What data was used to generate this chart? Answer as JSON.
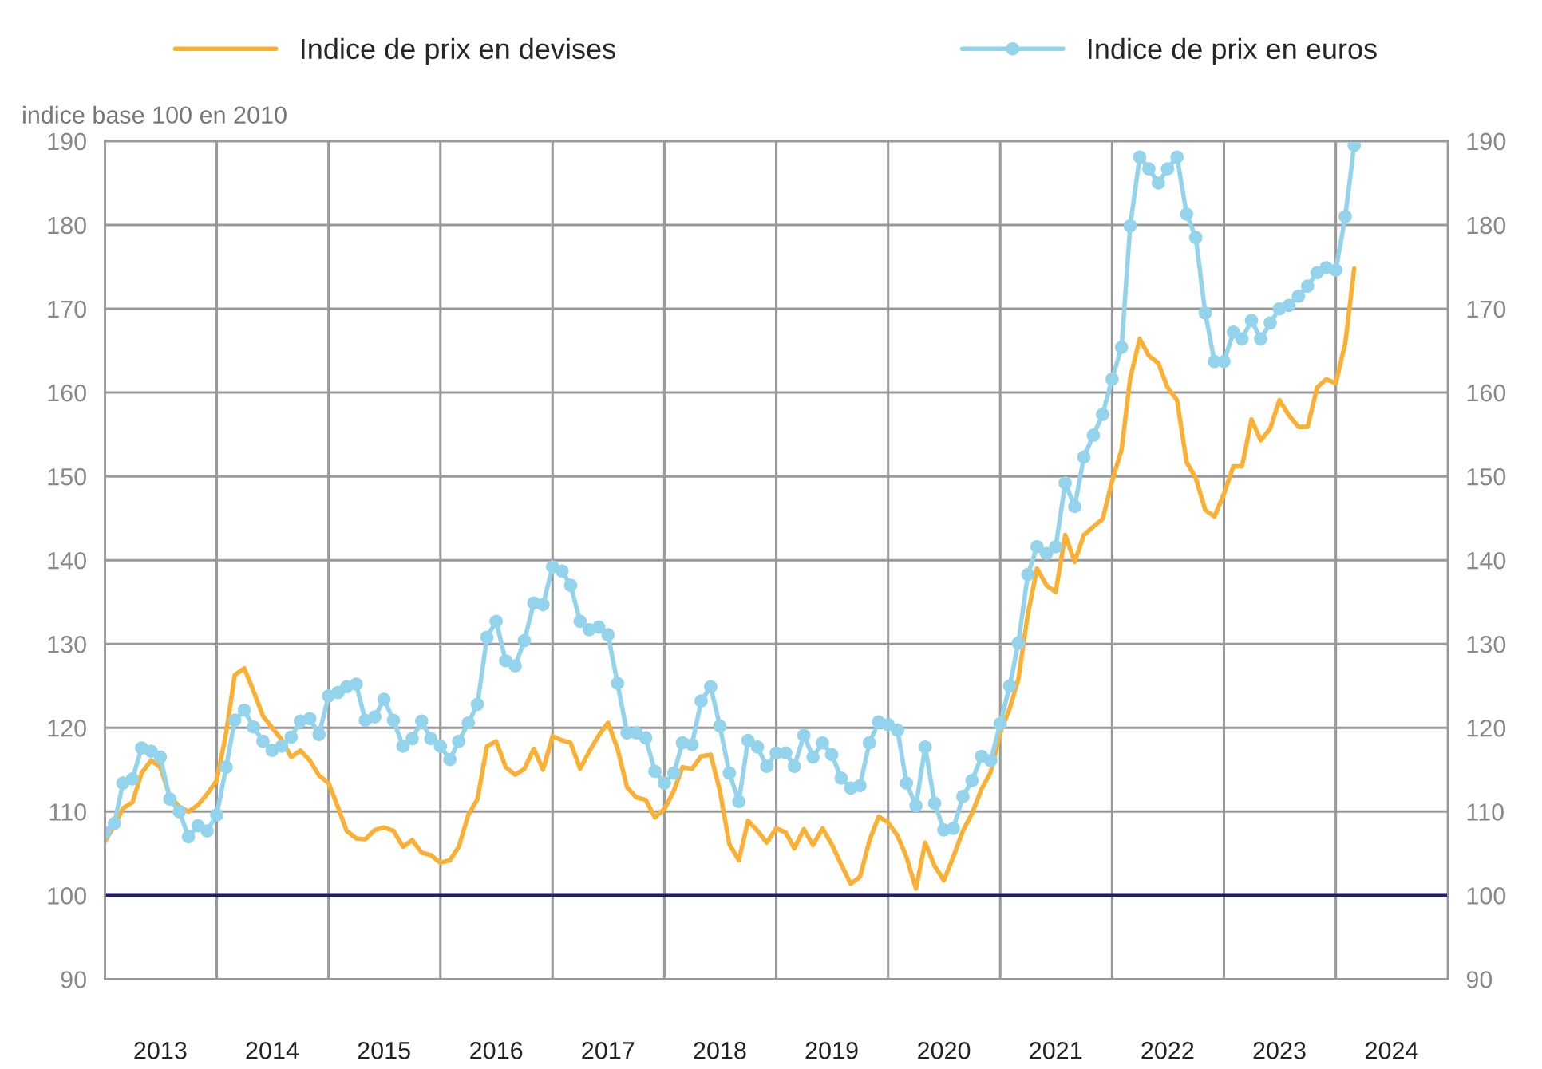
{
  "chart_data": {
    "type": "line",
    "ylabel": "indice base 100 en 2010",
    "x": [
      "2013-01",
      "2013-02",
      "2013-03",
      "2013-04",
      "2013-05",
      "2013-06",
      "2013-07",
      "2013-08",
      "2013-09",
      "2013-10",
      "2013-11",
      "2013-12",
      "2014-01",
      "2014-02",
      "2014-03",
      "2014-04",
      "2014-05",
      "2014-06",
      "2014-07",
      "2014-08",
      "2014-09",
      "2014-10",
      "2014-11",
      "2014-12",
      "2015-01",
      "2015-02",
      "2015-03",
      "2015-04",
      "2015-05",
      "2015-06",
      "2015-07",
      "2015-08",
      "2015-09",
      "2015-10",
      "2015-11",
      "2015-12",
      "2016-01",
      "2016-02",
      "2016-03",
      "2016-04",
      "2016-05",
      "2016-06",
      "2016-07",
      "2016-08",
      "2016-09",
      "2016-10",
      "2016-11",
      "2016-12",
      "2017-01",
      "2017-02",
      "2017-03",
      "2017-04",
      "2017-05",
      "2017-06",
      "2017-07",
      "2017-08",
      "2017-09",
      "2017-10",
      "2017-11",
      "2017-12",
      "2018-01",
      "2018-02",
      "2018-03",
      "2018-04",
      "2018-05",
      "2018-06",
      "2018-07",
      "2018-08",
      "2018-09",
      "2018-10",
      "2018-11",
      "2018-12",
      "2019-01",
      "2019-02",
      "2019-03",
      "2019-04",
      "2019-05",
      "2019-06",
      "2019-07",
      "2019-08",
      "2019-09",
      "2019-10",
      "2019-11",
      "2019-12",
      "2020-01",
      "2020-02",
      "2020-03",
      "2020-04",
      "2020-05",
      "2020-06",
      "2020-07",
      "2020-08",
      "2020-09",
      "2020-10",
      "2020-11",
      "2020-12",
      "2021-01",
      "2021-02",
      "2021-03",
      "2021-04",
      "2021-05",
      "2021-06",
      "2021-07",
      "2021-08",
      "2021-09",
      "2021-10",
      "2021-11",
      "2021-12",
      "2022-01",
      "2022-02",
      "2022-03",
      "2022-04",
      "2022-05",
      "2022-06",
      "2022-07",
      "2022-08",
      "2022-09",
      "2022-10",
      "2022-11",
      "2022-12",
      "2023-01",
      "2023-02",
      "2023-03",
      "2023-04",
      "2023-05",
      "2023-06",
      "2023-07",
      "2023-08",
      "2023-09",
      "2023-10",
      "2023-11",
      "2023-12",
      "2024-01",
      "2024-02",
      "2024-03"
    ],
    "series": [
      {
        "name": "Indice de prix en devises",
        "color": "#fbb034",
        "marker": "none",
        "values": [
          106.4,
          108.3,
          110.4,
          111.1,
          114.6,
          116.1,
          115.3,
          111.8,
          110.6,
          110.0,
          110.8,
          112.1,
          113.7,
          119.4,
          126.3,
          127.1,
          124.4,
          121.4,
          120.0,
          118.6,
          116.5,
          117.3,
          116.1,
          114.3,
          113.4,
          110.5,
          107.7,
          106.8,
          106.7,
          107.8,
          108.1,
          107.7,
          105.8,
          106.6,
          105.1,
          104.8,
          103.9,
          104.2,
          105.8,
          109.6,
          111.5,
          117.8,
          118.4,
          115.3,
          114.4,
          115.1,
          117.5,
          115.0,
          119.0,
          118.5,
          118.2,
          115.1,
          117.2,
          119.1,
          120.6,
          117.5,
          112.9,
          111.7,
          111.4,
          109.3,
          110.3,
          112.5,
          115.3,
          115.1,
          116.6,
          116.8,
          112.5,
          106.1,
          104.2,
          108.9,
          107.7,
          106.3,
          108.0,
          107.5,
          105.6,
          107.9,
          106.0,
          108.0,
          106.1,
          103.7,
          101.4,
          102.2,
          106.5,
          109.4,
          108.7,
          107.1,
          104.6,
          100.8,
          106.3,
          103.5,
          101.8,
          104.6,
          107.7,
          109.8,
          112.7,
          114.7,
          119.4,
          122.3,
          125.8,
          133.5,
          139.0,
          137.0,
          136.2,
          143.0,
          139.8,
          143.0,
          144.0,
          144.9,
          149.4,
          153.2,
          161.7,
          166.4,
          164.4,
          163.5,
          160.6,
          159.1,
          151.7,
          149.8,
          146.0,
          145.2,
          147.9,
          151.2,
          151.2,
          156.8,
          154.3,
          155.7,
          159.1,
          157.3,
          155.9,
          155.9,
          160.6,
          161.6,
          161.1,
          165.9,
          174.8
        ]
      },
      {
        "name": "Indice de prix en euros",
        "color": "#93d3ec",
        "marker": "circle",
        "values": [
          107.5,
          108.6,
          113.4,
          113.9,
          117.6,
          117.2,
          116.5,
          111.5,
          110.0,
          107.0,
          108.3,
          107.7,
          109.6,
          115.3,
          120.9,
          122.1,
          120.1,
          118.4,
          117.3,
          117.8,
          118.9,
          120.8,
          121.1,
          119.2,
          123.8,
          124.2,
          124.9,
          125.2,
          120.9,
          121.3,
          123.4,
          120.9,
          117.8,
          118.7,
          120.8,
          118.7,
          117.8,
          116.2,
          118.4,
          120.6,
          122.8,
          130.8,
          132.7,
          128.0,
          127.4,
          130.4,
          134.9,
          134.7,
          139.2,
          138.7,
          137.0,
          132.7,
          131.7,
          132.0,
          131.1,
          125.3,
          119.4,
          119.4,
          118.8,
          114.8,
          113.4,
          114.6,
          118.2,
          118.0,
          123.2,
          124.9,
          120.2,
          114.6,
          111.2,
          118.5,
          117.7,
          115.4,
          117.0,
          117.0,
          115.4,
          119.1,
          116.5,
          118.2,
          116.8,
          114.0,
          112.8,
          113.1,
          118.2,
          120.7,
          120.4,
          119.7,
          113.4,
          110.7,
          117.7,
          111.0,
          107.8,
          108.0,
          111.8,
          113.7,
          116.6,
          116.1,
          120.5,
          125.0,
          130.1,
          138.3,
          141.6,
          140.8,
          141.6,
          149.2,
          146.4,
          152.3,
          154.9,
          157.4,
          161.6,
          165.4,
          179.9,
          188.1,
          186.7,
          185.0,
          186.7,
          188.1,
          181.3,
          178.5,
          169.5,
          163.7,
          163.7,
          167.2,
          166.4,
          168.6,
          166.4,
          168.3,
          170.0,
          170.4,
          171.5,
          172.7,
          174.3,
          174.9,
          174.6,
          181.0,
          189.5
        ]
      }
    ],
    "xlim": [
      "2013-01-01",
      "2025-01-01"
    ],
    "xticks": [
      {
        "value": "2013-01-01",
        "label": null
      },
      {
        "value": "2013-07-01",
        "label": "2013"
      },
      {
        "value": "2014-01-01",
        "label": null
      },
      {
        "value": "2014-07-01",
        "label": "2014"
      },
      {
        "value": "2015-01-01",
        "label": null
      },
      {
        "value": "2015-07-01",
        "label": "2015"
      },
      {
        "value": "2016-01-01",
        "label": null
      },
      {
        "value": "2016-07-01",
        "label": "2016"
      },
      {
        "value": "2017-01-01",
        "label": null
      },
      {
        "value": "2017-07-01",
        "label": "2017"
      },
      {
        "value": "2018-01-01",
        "label": null
      },
      {
        "value": "2018-07-01",
        "label": "2018"
      },
      {
        "value": "2019-01-01",
        "label": null
      },
      {
        "value": "2019-07-01",
        "label": "2019"
      },
      {
        "value": "2020-01-01",
        "label": null
      },
      {
        "value": "2020-07-01",
        "label": "2020"
      },
      {
        "value": "2021-01-01",
        "label": null
      },
      {
        "value": "2021-07-01",
        "label": "2021"
      },
      {
        "value": "2022-01-01",
        "label": null
      },
      {
        "value": "2022-07-01",
        "label": "2022"
      },
      {
        "value": "2023-01-01",
        "label": null
      },
      {
        "value": "2023-07-01",
        "label": "2023"
      },
      {
        "value": "2024-01-01",
        "label": null
      },
      {
        "value": "2024-07-01",
        "label": "2024"
      },
      {
        "value": "2025-01-01",
        "label": null
      }
    ],
    "ylim": [
      90,
      190
    ],
    "yticks": [
      90,
      100,
      110,
      120,
      130,
      140,
      150,
      160,
      170,
      180,
      190
    ],
    "y2lim": [
      90,
      190
    ],
    "y2ticks": [
      90,
      100,
      110,
      120,
      130,
      140,
      150,
      160,
      170,
      180,
      190
    ],
    "ref_lines": [
      {
        "axis": "y",
        "value": 100,
        "color": "#1f1f6e"
      }
    ],
    "grid": true,
    "legend": "top",
    "line_style": "solid"
  }
}
